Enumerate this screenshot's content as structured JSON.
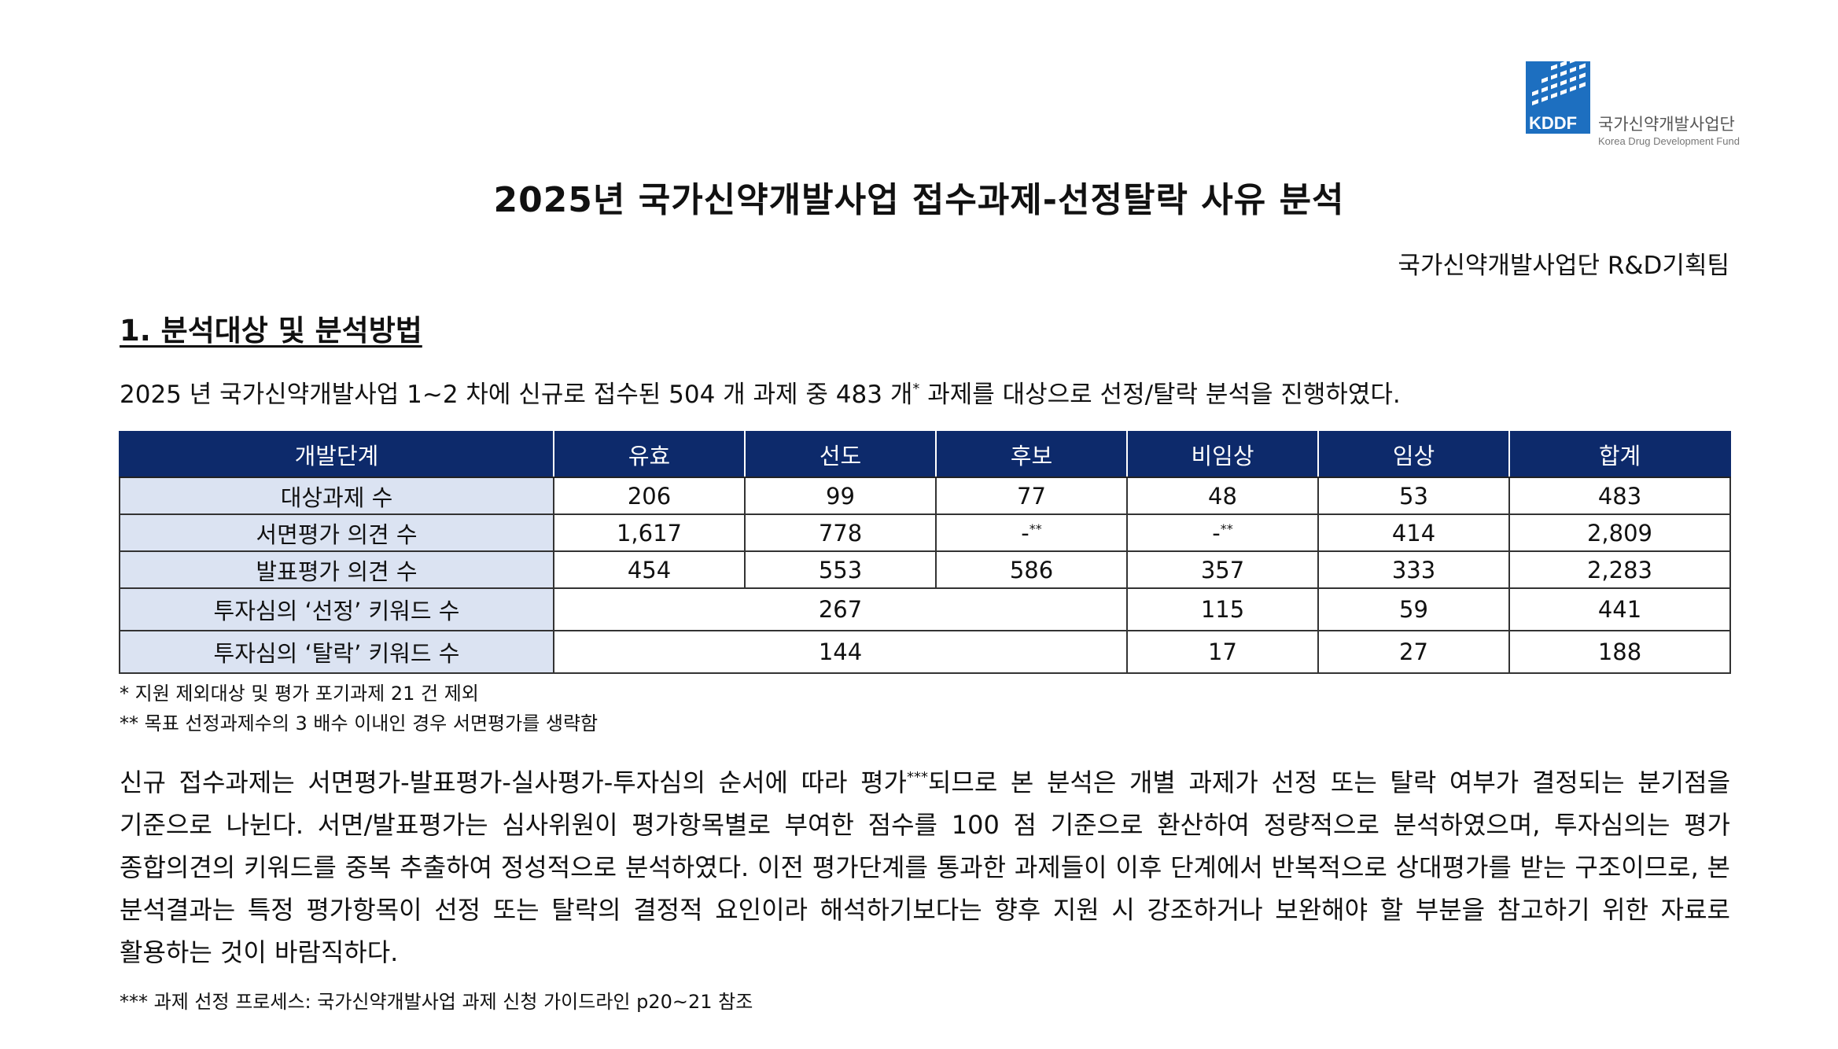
{
  "logo": {
    "abbr": "KDDF",
    "name": "국가신약개발사업단",
    "subtitle": "Korea Drug Development Fund",
    "brand_color": "#1d6fc0"
  },
  "title": "2025년 국가신약개발사업 접수과제-선정탈락 사유 분석",
  "department": "국가신약개발사업단 R&D기획팀",
  "section1": {
    "heading": "1. 분석대상 및 분석방법",
    "intro_before": "2025 년 국가신약개발사업 1~2 차에 신규로 접수된 504 개 과제 중 483 개",
    "intro_sup": "*",
    "intro_after": " 과제를 대상으로 선정/탈락 분석을 진행하였다."
  },
  "table": {
    "header_color": "#0d2a6b",
    "rowhead_color": "#dbe3f2",
    "headers": [
      "개발단계",
      "유효",
      "선도",
      "후보",
      "비임상",
      "임상",
      "합계"
    ],
    "rows": {
      "targets": {
        "label": "대상과제 수",
        "values": [
          "206",
          "99",
          "77",
          "48",
          "53",
          "483"
        ]
      },
      "written": {
        "label": "서면평가 의견 수",
        "values": [
          "1,617",
          "778",
          "-",
          "-",
          "414",
          "2,809"
        ],
        "marks": [
          "",
          "",
          "**",
          "**",
          "",
          ""
        ]
      },
      "presentation": {
        "label": "발표평가 의견 수",
        "values": [
          "454",
          "553",
          "586",
          "357",
          "333",
          "2,283"
        ]
      },
      "selected_kw": {
        "label": "투자심의 ‘선정’ 키워드 수",
        "merged": "267",
        "values": [
          "115",
          "59",
          "441"
        ]
      },
      "dropped_kw": {
        "label": "투자심의 ‘탈락’ 키워드 수",
        "merged": "144",
        "values": [
          "17",
          "27",
          "188"
        ]
      }
    }
  },
  "notes": {
    "n1": "* 지원 제외대상 및 평가 포기과제 21 건 제외",
    "n2": "** 목표 선정과제수의 3 배수 이내인 경우 서면평가를 생략함"
  },
  "paragraph": {
    "before_sup": "신규 접수과제는 서면평가-발표평가-실사평가-투자심의 순서에 따라 평가",
    "sup": "***",
    "after_sup": "되므로 본 분석은 개별 과제가 선정 또는 탈락 여부가 결정되는 분기점을 기준으로 나뉜다. 서면/발표평가는 심사위원이 평가항목별로 부여한 점수를 100 점 기준으로 환산하여 정량적으로 분석하였으며, 투자심의는 평가 종합의견의 키워드를 중복 추출하여 정성적으로 분석하였다. 이전 평가단계를 통과한 과제들이 이후 단계에서 반복적으로 상대평가를 받는 구조이므로, 본 분석결과는 특정 평가항목이 선정 또는 탈락의 결정적 요인이라 해석하기보다는 향후 지원 시 강조하거나 보완해야 할 부분을 참고하기 위한 자료로 활용하는 것이 바람직하다."
  },
  "footnote3": "*** 과제 선정 프로세스: 국가신약개발사업 과제 신청 가이드라인 p20~21 참조"
}
